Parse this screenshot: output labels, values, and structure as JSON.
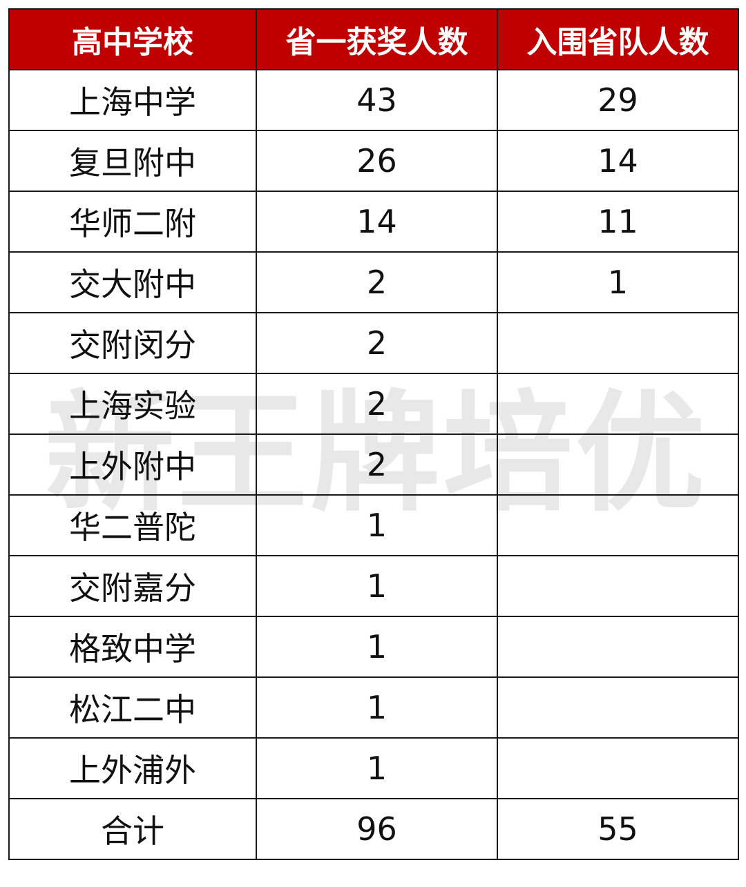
{
  "header": {
    "school": "高中学校",
    "award": "省一获奖人数",
    "team": "入围省队人数"
  },
  "rows": [
    {
      "school": "上海中学",
      "award": "43",
      "team": "29"
    },
    {
      "school": "复旦附中",
      "award": "26",
      "team": "14"
    },
    {
      "school": "华师二附",
      "award": "14",
      "team": "11"
    },
    {
      "school": "交大附中",
      "award": "2",
      "team": "1"
    },
    {
      "school": "交附闵分",
      "award": "2",
      "team": ""
    },
    {
      "school": "上海实验",
      "award": "2",
      "team": ""
    },
    {
      "school": "上外附中",
      "award": "2",
      "team": ""
    },
    {
      "school": "华二普陀",
      "award": "1",
      "team": ""
    },
    {
      "school": "交附嘉分",
      "award": "1",
      "team": ""
    },
    {
      "school": "格致中学",
      "award": "1",
      "team": ""
    },
    {
      "school": "松江二中",
      "award": "1",
      "team": ""
    },
    {
      "school": "上外浦外",
      "award": "1",
      "team": ""
    }
  ],
  "total": {
    "label": "合计",
    "award": "96",
    "team": "55"
  },
  "watermark": "新王牌培优",
  "colors": {
    "header_bg": "#C00000",
    "header_text": "#FFFFFF"
  }
}
